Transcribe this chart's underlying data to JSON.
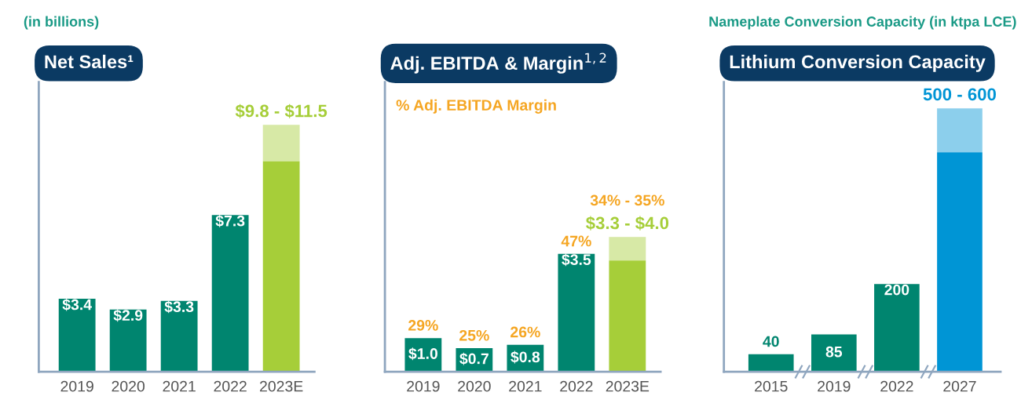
{
  "chart_data": [
    {
      "type": "bar",
      "stacked": true,
      "title": "Net Sales¹",
      "subtitle": "(in billions)",
      "categories": [
        "2019",
        "2020",
        "2021",
        "2022",
        "2023E"
      ],
      "ylim": [
        0,
        13.5
      ],
      "series": [
        {
          "colors": [
            "#00856f",
            "#00856f",
            "#00856f",
            "#00856f",
            "#a6ce39"
          ],
          "values": [
            3.4,
            2.9,
            3.3,
            7.3,
            9.8
          ],
          "value_labels": [
            "$3.4",
            "$2.9",
            "$3.3",
            "$7.3",
            null
          ]
        },
        {
          "color": "#a6ce39",
          "values": [
            null,
            null,
            null,
            null,
            1.7
          ]
        }
      ],
      "annotations": [
        {
          "text": "$9.8 - $11.5",
          "x": "2023E",
          "y": 11.5
        }
      ]
    },
    {
      "type": "bar",
      "stacked": true,
      "title": "Adj. EBITDA & Margin$^{1,2}$",
      "categories": [
        "2019",
        "2020",
        "2021",
        "2022",
        "2023E"
      ],
      "ylim": [
        0,
        8.6
      ],
      "series": [
        {
          "colors": [
            "#00856f",
            "#00856f",
            "#00856f",
            "#00856f",
            "#a6ce39"
          ],
          "values": [
            1.0,
            0.7,
            0.8,
            3.5,
            3.3
          ],
          "value_labels": [
            "$1.0",
            "$0.7",
            "$0.8",
            "$3.5",
            null
          ]
        },
        {
          "color": "#a6ce39",
          "values": [
            null,
            null,
            null,
            null,
            0.7
          ]
        }
      ],
      "annotations": [
        "% Adj. EBITDA Margin",
        {
          "text": "$3.3 - $4.0",
          "x": "2023E",
          "y": 4.0
        },
        {
          "text": "29%",
          "x": "2019",
          "y": 1.0
        },
        {
          "text": "25%",
          "x": "2020",
          "y": 0.7
        },
        {
          "text": "26%",
          "x": "2021",
          "y": 0.8
        },
        {
          "text": "47%",
          "x": "2022",
          "y": 3.5
        },
        {
          "text": "34% - 35%",
          "x": "2023E",
          "y": 4.0
        }
      ]
    },
    {
      "type": "bar",
      "stacked": true,
      "title": "Lithium Conversion Capacity",
      "subtitle": "Nameplate Conversion Capacity (in ktpa LCE)",
      "categories": [
        "2015",
        "2019",
        "2022",
        "2027"
      ],
      "ylim": [
        0,
        660
      ],
      "series": [
        {
          "colors": [
            "#00856f",
            "#00856f",
            "#00856f",
            "#0095d5"
          ],
          "values": [
            40,
            85,
            200,
            500
          ],
          "value_labels": [
            "40",
            "85",
            "200",
            null
          ]
        },
        {
          "color": "#0095d5",
          "values": [
            null,
            null,
            null,
            100
          ]
        }
      ],
      "annotations": [
        {
          "text": "500 - 600",
          "x": "2027",
          "y": 600
        }
      ]
    }
  ]
}
